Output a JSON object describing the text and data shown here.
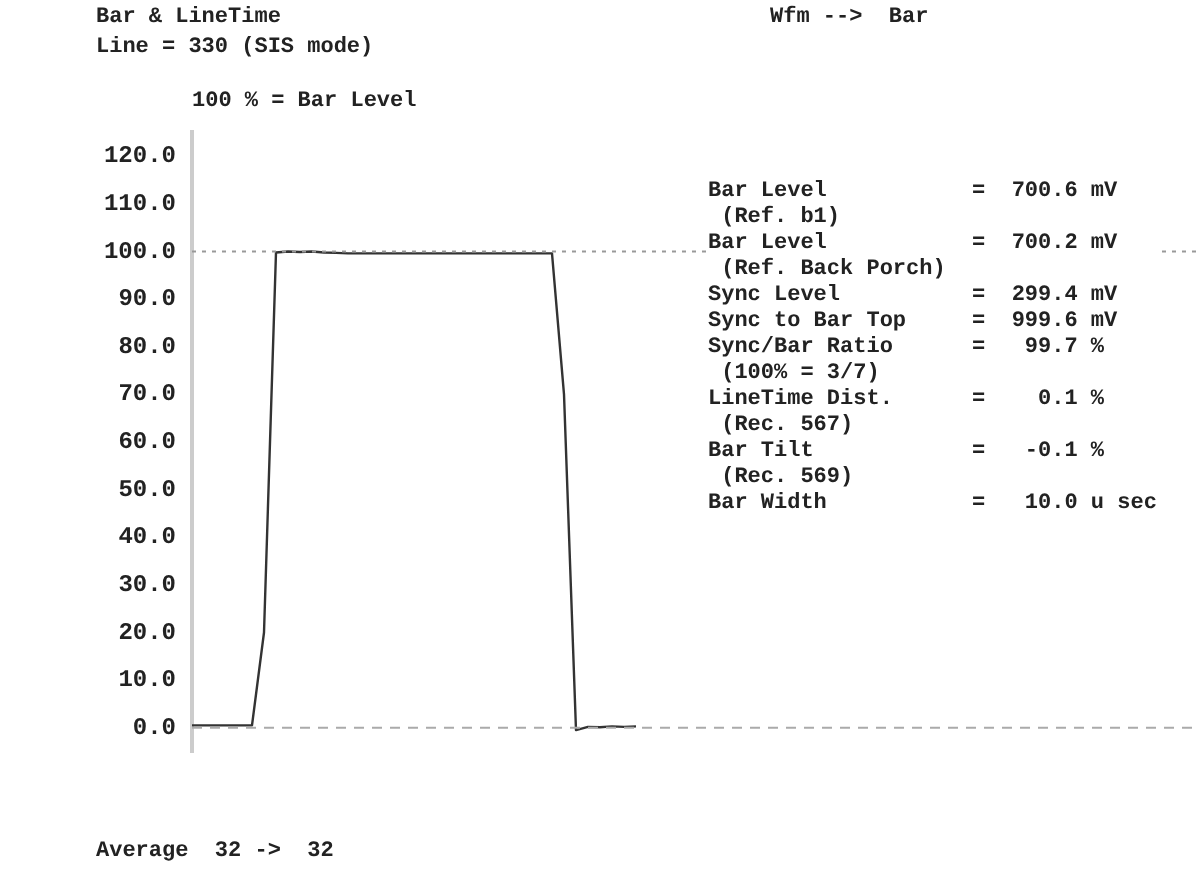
{
  "chart_data": {
    "type": "line",
    "title": "Bar & LineTime",
    "subtitle": "Line = 330 (SIS mode)",
    "ylabel": "100 % = Bar Level",
    "annotations": [
      "Wfm -->  Bar",
      "Bar Level           =  700.6 mV",
      " (Ref. b1)",
      "Bar Level           =  700.2 mV",
      " (Ref. Back Porch)",
      "Sync Level          =  299.4 mV",
      "Sync to Bar Top     =  999.6 mV",
      "Sync/Bar Ratio      =   99.7 %",
      " (100% = 3/7)",
      "LineTime Dist.      =    0.1 %",
      " (Rec. 567)",
      "Bar Tilt            =   -0.1 %",
      " (Rec. 569)",
      "Bar Width           =   10.0 u sec",
      "Average  32 ->  32"
    ],
    "categories": [
      null,
      null,
      null,
      null,
      null,
      null,
      null,
      null,
      null,
      null,
      null,
      null,
      null,
      null,
      null,
      null,
      null,
      null,
      null,
      null,
      null,
      null,
      null,
      null,
      null,
      null,
      null,
      null,
      null,
      null,
      null,
      null,
      null,
      null,
      null,
      null,
      null,
      null,
      null,
      null,
      null,
      null,
      null,
      null,
      null,
      null,
      null,
      null,
      null,
      null,
      null,
      null,
      null,
      null,
      null,
      null,
      null,
      null,
      null,
      null,
      null,
      null,
      null,
      null,
      null,
      null,
      null,
      null,
      null,
      null,
      null,
      null,
      null,
      null,
      null,
      null,
      null,
      null,
      null,
      null,
      null,
      null,
      null,
      null,
      null
    ],
    "series": [
      {
        "color": "#333333",
        "values": [
          0.5,
          0.5,
          0.5,
          0.5,
          0.5,
          0.5,
          20,
          99.8,
          100,
          99.9,
          100,
          99.8,
          99.7,
          99.6,
          99.6,
          99.6,
          99.6,
          99.6,
          99.6,
          99.6,
          99.6,
          99.6,
          99.6,
          99.6,
          99.6,
          99.6,
          99.6,
          99.6,
          99.6,
          99.6,
          99.6,
          70,
          -0.5,
          0.2,
          0.1,
          0.3,
          0.2,
          0.3,
          null,
          null,
          null,
          null,
          null,
          null,
          null,
          null,
          null,
          null,
          null,
          null,
          null,
          null,
          null,
          null,
          null,
          null,
          null,
          null,
          null,
          null,
          null,
          null,
          null,
          null,
          null,
          null,
          null,
          null,
          null,
          null,
          null,
          null,
          null,
          null,
          null,
          null,
          null,
          null,
          null,
          null,
          null,
          null,
          null,
          null,
          null
        ]
      }
    ],
    "ylim": [
      -5,
      125
    ],
    "yticks": [
      {
        "value": 0,
        "label": "0.0"
      },
      {
        "value": 10,
        "label": "10.0"
      },
      {
        "value": 20,
        "label": "20.0"
      },
      {
        "value": 30,
        "label": "30.0"
      },
      {
        "value": 40,
        "label": "40.0"
      },
      {
        "value": 50,
        "label": "50.0"
      },
      {
        "value": 60,
        "label": "60.0"
      },
      {
        "value": 70,
        "label": "70.0"
      },
      {
        "value": 80,
        "label": "80.0"
      },
      {
        "value": 90,
        "label": "90.0"
      },
      {
        "value": 100,
        "label": "100.0"
      },
      {
        "value": 110,
        "label": "110.0"
      },
      {
        "value": 120,
        "label": "120.0"
      }
    ],
    "ref_lines": [
      {
        "axis": "y",
        "value": 100,
        "color": "#999999",
        "line_style": "dotted"
      },
      {
        "axis": "y",
        "value": 0,
        "color": "#aaaaaa",
        "line_style": "dashed"
      }
    ],
    "tick_labels": "y",
    "grid": false,
    "legend": false,
    "marker": "none",
    "line_style": "solid"
  }
}
